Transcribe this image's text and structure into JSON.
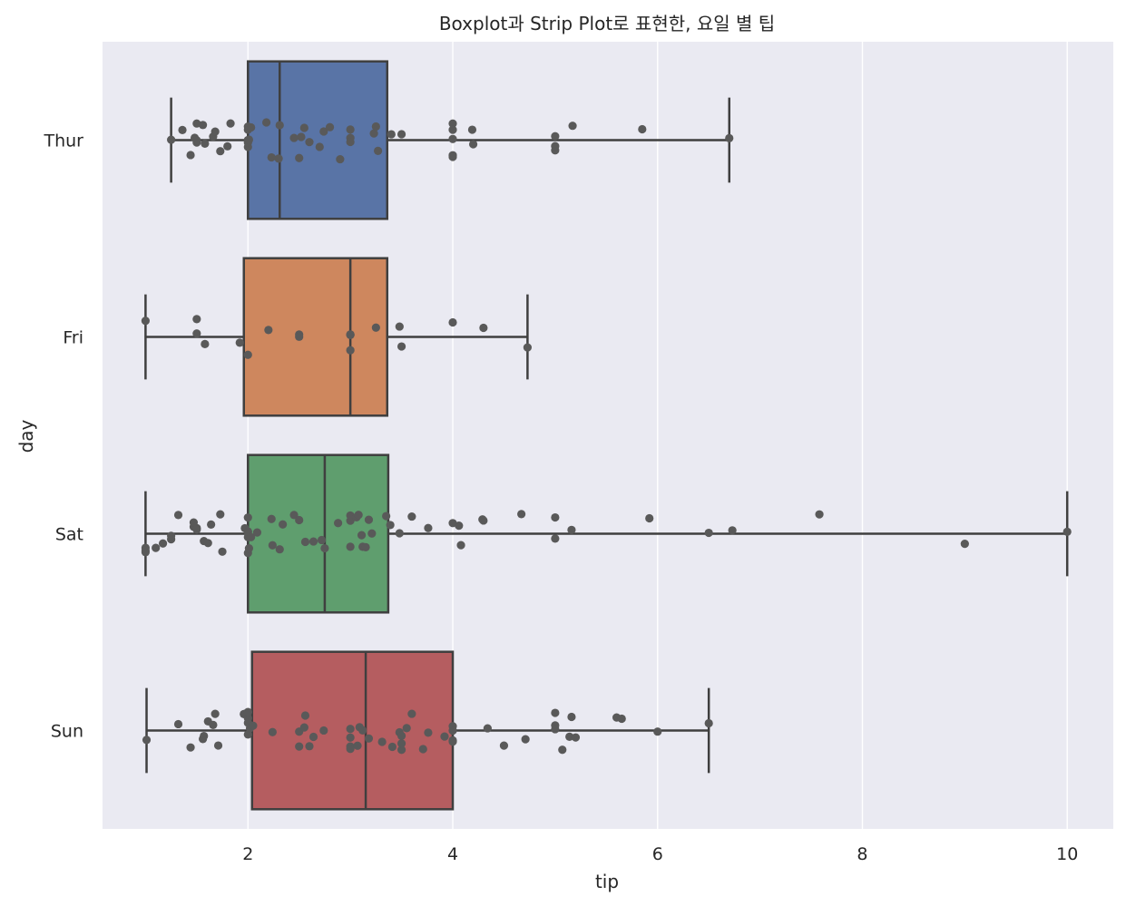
{
  "chart_data": {
    "type": "boxplot",
    "title": "Boxplot과 Strip Plot로 표현한, 요일 별 팁",
    "xlabel": "tip",
    "ylabel": "day",
    "xlim": [
      0.58,
      10.45
    ],
    "xticks": [
      2,
      4,
      6,
      8,
      10
    ],
    "grid": true,
    "orientation": "horizontal",
    "colors": {
      "background": "#EAEAF2",
      "grid": "#FFFFFF",
      "line": "#3F3F3F",
      "point": "#595959"
    },
    "categories": [
      "Thur",
      "Fri",
      "Sat",
      "Sun"
    ],
    "boxes": [
      {
        "name": "Thur",
        "color": "#5974A6",
        "whisker_low": 1.25,
        "q1": 2.0,
        "median": 2.31,
        "q3": 3.36,
        "whisker_high": 6.7
      },
      {
        "name": "Fri",
        "color": "#CE875E",
        "whisker_low": 1.0,
        "q1": 1.96,
        "median": 3.0,
        "q3": 3.36,
        "whisker_high": 4.73
      },
      {
        "name": "Sat",
        "color": "#5F9E6E",
        "whisker_low": 1.0,
        "q1": 2.0,
        "median": 2.75,
        "q3": 3.37,
        "whisker_high": 10.0
      },
      {
        "name": "Sun",
        "color": "#B55D60",
        "whisker_low": 1.01,
        "q1": 2.04,
        "median": 3.15,
        "q3": 4.0,
        "whisker_high": 6.5
      }
    ],
    "points": [
      [
        1.25,
        1.5,
        1.56,
        1.36,
        1.48,
        1.5,
        1.5,
        1.44,
        1.58,
        1.66,
        1.68,
        1.73,
        1.8,
        1.83,
        2.0,
        2.0,
        2.0,
        2.0,
        2.0,
        2.01,
        2.03,
        2.18,
        2.23,
        2.3,
        2.31,
        2.45,
        2.5,
        2.55,
        2.52,
        2.6,
        2.7,
        2.74,
        2.8,
        2.9,
        3.0,
        3.0,
        3.0,
        3.23,
        3.25,
        3.27,
        3.4,
        3.5,
        4.0,
        4.0,
        4.0,
        4.0,
        4.0,
        4.19,
        4.2,
        5.0,
        5.0,
        5.0,
        5.17,
        5.85,
        6.7
      ],
      [
        1.0,
        1.5,
        1.5,
        1.58,
        1.92,
        2.0,
        2.2,
        2.5,
        2.5,
        3.0,
        3.0,
        3.0,
        3.0,
        3.25,
        3.48,
        3.5,
        4.0,
        4.3,
        4.73
      ],
      [
        1.0,
        1.0,
        1.0,
        1.1,
        1.17,
        1.25,
        1.25,
        1.32,
        1.47,
        1.5,
        1.47,
        1.5,
        1.57,
        1.61,
        1.64,
        1.75,
        1.73,
        1.97,
        2.0,
        2.0,
        2.0,
        2.0,
        2.0,
        2.01,
        2.03,
        2.09,
        2.23,
        2.24,
        2.31,
        2.34,
        2.45,
        2.5,
        2.56,
        2.64,
        2.72,
        2.75,
        2.88,
        3.0,
        3.0,
        3.0,
        3.06,
        3.08,
        3.11,
        3.12,
        3.15,
        3.18,
        3.21,
        3.35,
        3.39,
        3.48,
        3.6,
        3.76,
        4.0,
        4.06,
        4.08,
        4.29,
        4.3,
        4.67,
        5.0,
        5.0,
        5.16,
        5.92,
        6.5,
        6.73,
        7.58,
        9.0,
        10.0
      ],
      [
        1.01,
        1.32,
        1.44,
        1.56,
        1.57,
        1.61,
        1.66,
        1.68,
        1.71,
        1.96,
        1.98,
        2.0,
        2.0,
        2.0,
        2.0,
        2.02,
        2.05,
        2.24,
        2.5,
        2.5,
        2.55,
        2.56,
        2.6,
        2.64,
        2.74,
        3.0,
        3.0,
        3.0,
        3.0,
        3.07,
        3.09,
        3.12,
        3.18,
        3.31,
        3.41,
        3.48,
        3.5,
        3.5,
        3.5,
        3.55,
        3.6,
        3.71,
        3.76,
        3.92,
        4.0,
        4.0,
        4.0,
        4.0,
        4.34,
        4.5,
        4.71,
        5.0,
        5.0,
        5.0,
        5.07,
        5.14,
        5.16,
        5.2,
        5.6,
        5.65,
        6.0,
        6.5
      ]
    ]
  }
}
